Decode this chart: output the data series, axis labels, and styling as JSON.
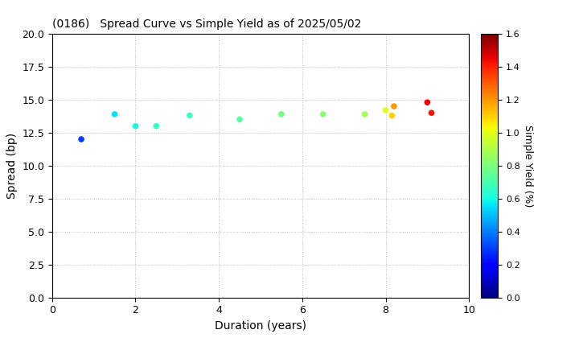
{
  "title": "(0186)   Spread Curve vs Simple Yield as of 2025/05/02",
  "xlabel": "Duration (years)",
  "ylabel": "Spread (bp)",
  "colorbar_label": "Simple Yield (%)",
  "xlim": [
    0,
    10
  ],
  "ylim": [
    0.0,
    20.0
  ],
  "colorbar_min": 0.0,
  "colorbar_max": 1.6,
  "points": [
    {
      "duration": 0.7,
      "spread": 12.0,
      "simple_yield": 0.3
    },
    {
      "duration": 1.5,
      "spread": 13.9,
      "simple_yield": 0.55
    },
    {
      "duration": 2.0,
      "spread": 13.0,
      "simple_yield": 0.6
    },
    {
      "duration": 2.5,
      "spread": 13.0,
      "simple_yield": 0.65
    },
    {
      "duration": 3.3,
      "spread": 13.8,
      "simple_yield": 0.68
    },
    {
      "duration": 4.5,
      "spread": 13.5,
      "simple_yield": 0.73
    },
    {
      "duration": 5.5,
      "spread": 13.9,
      "simple_yield": 0.78
    },
    {
      "duration": 6.5,
      "spread": 13.9,
      "simple_yield": 0.82
    },
    {
      "duration": 7.5,
      "spread": 13.9,
      "simple_yield": 0.88
    },
    {
      "duration": 8.0,
      "spread": 14.2,
      "simple_yield": 1.0
    },
    {
      "duration": 8.15,
      "spread": 13.8,
      "simple_yield": 1.1
    },
    {
      "duration": 8.2,
      "spread": 14.5,
      "simple_yield": 1.2
    },
    {
      "duration": 9.0,
      "spread": 14.8,
      "simple_yield": 1.45
    },
    {
      "duration": 9.1,
      "spread": 14.0,
      "simple_yield": 1.42
    }
  ],
  "grid_color": "#bbbbbb",
  "grid_linestyle": ":",
  "bg_color": "#ffffff",
  "marker_size": 20,
  "colormap": "jet",
  "xticks": [
    0,
    2,
    4,
    6,
    8,
    10
  ],
  "yticks": [
    0.0,
    2.5,
    5.0,
    7.5,
    10.0,
    12.5,
    15.0,
    17.5,
    20.0
  ],
  "title_fontsize": 10,
  "axis_fontsize": 10,
  "colorbar_tick_fontsize": 8,
  "colorbar_label_fontsize": 9
}
